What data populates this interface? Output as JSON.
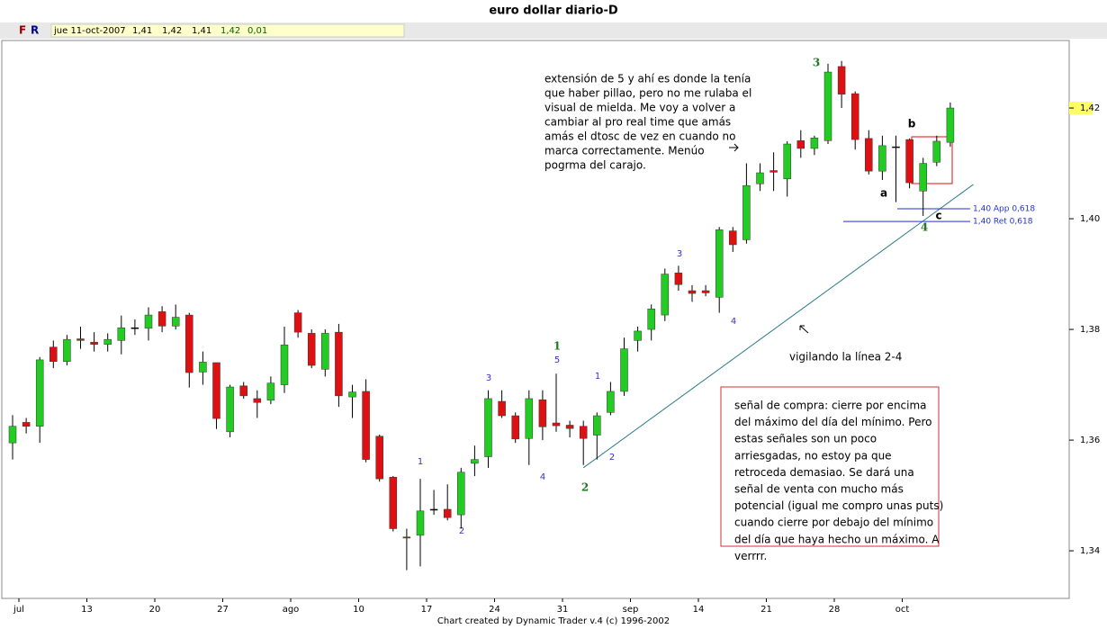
{
  "chart_data": {
    "type": "candlestick",
    "title": "euro dollar diario-D",
    "toolbar": {
      "buttons": [
        "F",
        "R"
      ],
      "date": "jue 11-oct-2007",
      "open": "1,41",
      "high": "1,42",
      "low": "1,41",
      "close": "1,42",
      "change": "0,01"
    },
    "footer": "Chart created by Dynamic Trader v.4  (c) 1996-2002",
    "categories": [
      "jul",
      null,
      null,
      null,
      null,
      "13",
      null,
      null,
      null,
      null,
      "20",
      null,
      null,
      null,
      null,
      "27",
      null,
      null,
      null,
      null,
      "ago",
      null,
      null,
      null,
      null,
      "10",
      null,
      null,
      null,
      null,
      "17",
      null,
      null,
      null,
      null,
      "24",
      null,
      null,
      null,
      null,
      "31",
      null,
      null,
      null,
      null,
      "sep",
      null,
      null,
      null,
      null,
      "14",
      null,
      null,
      null,
      null,
      "21",
      null,
      null,
      null,
      null,
      "28",
      null,
      null,
      null,
      null,
      "oct",
      null,
      null,
      null,
      null
    ],
    "open": [
      1.3595,
      1.3632,
      1.3625,
      1.3768,
      1.3742,
      1.3783,
      1.3777,
      1.3773,
      1.378,
      1.3803,
      1.3802,
      1.3832,
      1.3806,
      1.3826,
      1.3723,
      1.374,
      1.3615,
      1.3698,
      1.3675,
      1.3672,
      1.37,
      1.383,
      1.3793,
      1.3728,
      1.3795,
      1.3678,
      1.3688,
      1.3607,
      1.3533,
      1.3425,
      1.3428,
      1.3475,
      1.3475,
      1.3465,
      1.3558,
      1.357,
      1.367,
      1.3644,
      1.3603,
      1.3673,
      1.3631,
      1.3627,
      1.3625,
      1.3609,
      1.365,
      1.3688,
      1.378,
      1.38,
      1.3826,
      1.3902,
      1.387,
      1.387,
      1.3858,
      1.3978,
      1.3962,
      1.4063,
      1.4087,
      1.4072,
      1.4141,
      1.4127,
      1.4141,
      1.4275,
      1.4226,
      1.4145,
      1.4086,
      1.413,
      1.4143,
      1.405,
      1.4102,
      1.4138
    ],
    "high": [
      1.3645,
      1.364,
      1.375,
      1.378,
      1.379,
      1.3805,
      1.3795,
      1.3793,
      1.3825,
      1.3818,
      1.384,
      1.3842,
      1.3845,
      1.383,
      1.376,
      1.374,
      1.37,
      1.3705,
      1.369,
      1.3715,
      1.3805,
      1.3835,
      1.38,
      1.38,
      1.381,
      1.37,
      1.371,
      1.361,
      1.3535,
      1.344,
      1.353,
      1.351,
      1.352,
      1.355,
      1.359,
      1.369,
      1.369,
      1.365,
      1.369,
      1.369,
      1.372,
      1.3635,
      1.3635,
      1.365,
      1.3705,
      1.3785,
      1.3805,
      1.3845,
      1.391,
      1.3915,
      1.388,
      1.388,
      1.3985,
      1.3985,
      1.41,
      1.41,
      1.412,
      1.414,
      1.416,
      1.415,
      1.428,
      1.4285,
      1.423,
      1.416,
      1.415,
      1.415,
      1.4145,
      1.411,
      1.415,
      1.421
    ],
    "low": [
      1.3565,
      1.3612,
      1.3595,
      1.373,
      1.3735,
      1.3765,
      1.376,
      1.376,
      1.3755,
      1.379,
      1.378,
      1.3795,
      1.38,
      1.3695,
      1.37,
      1.362,
      1.3605,
      1.3675,
      1.364,
      1.3665,
      1.3685,
      1.3785,
      1.373,
      1.3715,
      1.366,
      1.364,
      1.356,
      1.3525,
      1.3435,
      1.3365,
      1.3372,
      1.3465,
      1.3455,
      1.344,
      1.3535,
      1.355,
      1.364,
      1.3595,
      1.3555,
      1.36,
      1.3615,
      1.3605,
      1.3555,
      1.3565,
      1.3645,
      1.368,
      1.376,
      1.378,
      1.3815,
      1.387,
      1.385,
      1.386,
      1.383,
      1.394,
      1.3955,
      1.405,
      1.405,
      1.404,
      1.411,
      1.4115,
      1.4135,
      1.42,
      1.4125,
      1.408,
      1.407,
      1.403,
      1.4055,
      1.4005,
      1.4095,
      1.413
    ],
    "close": [
      1.3625,
      1.3625,
      1.3745,
      1.3742,
      1.3782,
      1.378,
      1.3773,
      1.3782,
      1.3803,
      1.3803,
      1.3826,
      1.3806,
      1.3822,
      1.3722,
      1.3741,
      1.3639,
      1.3696,
      1.368,
      1.3668,
      1.3703,
      1.3772,
      1.3795,
      1.3735,
      1.3793,
      1.368,
      1.3687,
      1.3565,
      1.353,
      1.344,
      1.3423,
      1.3472,
      1.3475,
      1.346,
      1.3542,
      1.3565,
      1.3675,
      1.3644,
      1.3602,
      1.3675,
      1.3624,
      1.3626,
      1.3621,
      1.3603,
      1.3644,
      1.3688,
      1.3765,
      1.3797,
      1.3837,
      1.39,
      1.3881,
      1.3865,
      1.3866,
      1.398,
      1.3953,
      1.406,
      1.4083,
      1.4084,
      1.4135,
      1.4127,
      1.4146,
      1.4265,
      1.4225,
      1.4143,
      1.4086,
      1.4132,
      1.413,
      1.4065,
      1.41,
      1.414,
      1.42
    ],
    "up_color": "#22cc22",
    "down_color": "#dd1111",
    "flat_color": "#000000",
    "ylim": [
      1.3314,
      1.4322
    ],
    "yticks": [
      {
        "value": 1.34,
        "label": "1,34"
      },
      {
        "value": 1.36,
        "label": "1,36"
      },
      {
        "value": 1.38,
        "label": "1,38"
      },
      {
        "value": 1.4,
        "label": "1,40"
      },
      {
        "value": 1.42,
        "label": "1,42"
      }
    ],
    "levels": [
      {
        "value": 1.4018,
        "label": "1,40 App 0,618"
      },
      {
        "value": 1.3995,
        "label": "1,40 Ret 0,618"
      }
    ],
    "trendline": {
      "x": [
        42,
        70.7
      ],
      "y": [
        1.355,
        1.4062
      ]
    },
    "annotations": [
      "3",
      "1",
      "5",
      "2",
      "4",
      "1",
      "2",
      "3",
      "4",
      "1",
      "2",
      "3",
      "4",
      "a",
      "b",
      "c"
    ],
    "note_top": [
      "extensión de 5 y ahí es donde la tenía",
      "que haber pillao, pero no me rulaba el",
      "visual de mielda. Me voy a volver a",
      "cambiar al pro real time que amás",
      "amás el dtosc de vez en cuando no",
      "marca correctamente. Menúo",
      "pogrma del carajo."
    ],
    "note_box": [
      "señal de compra: cierre por encima",
      "del máximo del día del mínimo. Pero",
      "estas señales son un poco",
      "arriesgadas, no estoy pa que",
      "retroceda demasiao. Se dará una",
      "señal de venta con mucho más",
      "potencial (igual me compro unas puts)",
      "cuando cierre por debajo del mínimo",
      "del día que haya hecho un máximo. A",
      "verrrr."
    ],
    "note_line": "vigilando la línea 2-4"
  }
}
